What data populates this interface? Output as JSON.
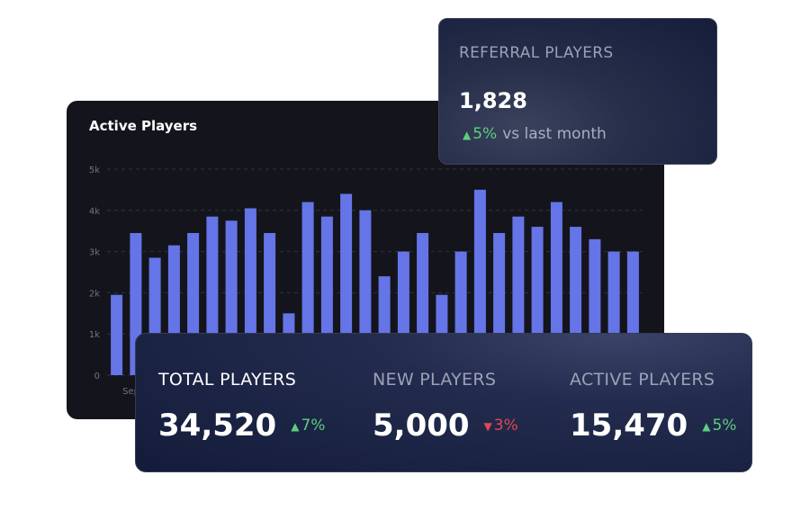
{
  "chart_data": {
    "type": "bar",
    "title": "Active Players",
    "xlabel": "",
    "ylabel": "",
    "ylim": [
      0,
      5000
    ],
    "yticks": [
      "0",
      "1k",
      "2k",
      "3k",
      "4k",
      "5k"
    ],
    "ytick_values": [
      0,
      1000,
      2000,
      3000,
      4000,
      5000
    ],
    "first_x_label": "Sep",
    "values": [
      1950,
      3450,
      2850,
      3150,
      3450,
      3850,
      3750,
      4050,
      3450,
      1500,
      4200,
      3850,
      4400,
      4000,
      2400,
      3000,
      3450,
      1950,
      3000,
      4500,
      3450,
      3850,
      3600,
      4200,
      3600,
      3300,
      3000,
      3000
    ],
    "bar_color": "#6574e6",
    "grid": true
  },
  "referral": {
    "label": "REFERRAL PLAYERS",
    "value": "1,828",
    "change": "5%",
    "change_direction": "up",
    "comparison": "vs last month"
  },
  "stats": [
    {
      "label": "TOTAL PLAYERS",
      "value": "34,520",
      "change": "7%",
      "direction": "up",
      "label_color": "#ffffff"
    },
    {
      "label": "NEW PLAYERS",
      "value": "5,000",
      "change": "3%",
      "direction": "down",
      "label_color": "#9aa2b6"
    },
    {
      "label": "ACTIVE PLAYERS",
      "value": "15,470",
      "change": "5%",
      "direction": "up",
      "label_color": "#9aa2b6"
    }
  ],
  "colors": {
    "up": "#5ccf7f",
    "down": "#e0484f",
    "accent": "#6574e6"
  },
  "icons": {
    "up": "triangle-up-icon",
    "down": "triangle-down-icon"
  }
}
